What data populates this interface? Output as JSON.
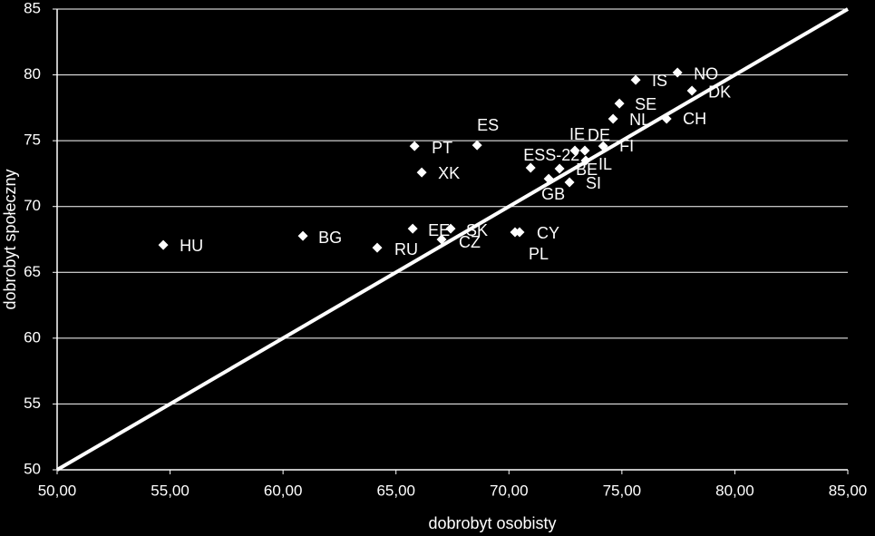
{
  "chart_data": {
    "type": "scatter",
    "x_label": "dobrobyt osobisty",
    "y_label": "dobrobyt społeczny",
    "color": "#ffffff",
    "grid": true,
    "xlim": [
      50,
      85
    ],
    "ylim": [
      50,
      85
    ],
    "xticks": [
      {
        "value": 50,
        "label": "50,00"
      },
      {
        "value": 55,
        "label": "55,00"
      },
      {
        "value": 60,
        "label": "60,00"
      },
      {
        "value": 65,
        "label": "65,00"
      },
      {
        "value": 70,
        "label": "70,00"
      },
      {
        "value": 75,
        "label": "75,00"
      },
      {
        "value": 80,
        "label": "80,00"
      },
      {
        "value": 85,
        "label": "85,00"
      }
    ],
    "yticks": [
      50,
      55,
      60,
      65,
      70,
      75,
      80,
      85
    ],
    "diagonal": {
      "x": [
        50,
        85
      ],
      "values": [
        50,
        85
      ]
    },
    "labels": [
      "HU",
      "BG",
      "RU",
      "EE",
      "SK",
      "CZ",
      "PL",
      "CY",
      "PT",
      "XK",
      "ES",
      "ESS-22",
      "GB",
      "BE",
      "SI",
      "IE",
      "DE",
      "IL",
      "FI",
      "NL",
      "CH",
      "SE",
      "IS",
      "NO",
      "DK"
    ],
    "x": [
      54.7,
      60.88,
      64.17,
      65.74,
      67.42,
      67.02,
      70.27,
      70.47,
      65.82,
      66.14,
      68.59,
      70.96,
      71.76,
      72.24,
      72.68,
      72.92,
      73.36,
      73.4,
      74.17,
      74.61,
      76.98,
      74.89,
      75.61,
      77.46,
      78.1
    ],
    "values": [
      67.08,
      67.77,
      66.87,
      68.32,
      68.32,
      67.5,
      68.05,
      68.05,
      74.59,
      72.59,
      74.66,
      72.94,
      72.11,
      72.87,
      71.84,
      74.25,
      74.25,
      73.49,
      74.59,
      76.66,
      76.66,
      77.83,
      79.62,
      80.18,
      78.8
    ]
  }
}
